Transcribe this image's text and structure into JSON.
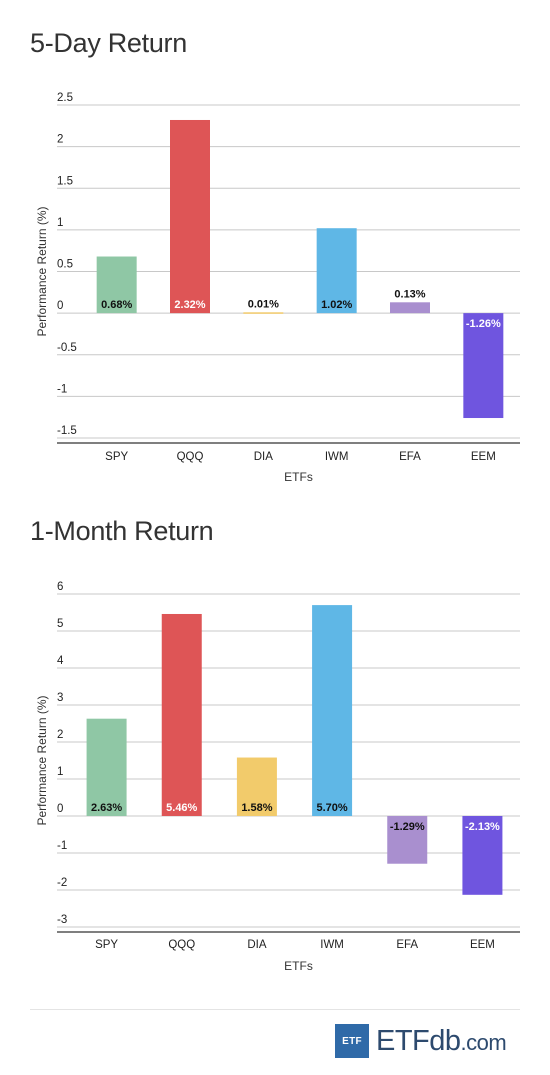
{
  "chart_data": [
    {
      "type": "bar",
      "title": "5-Day Return",
      "xlabel": "ETFs",
      "ylabel": "Performance Return (%)",
      "categories": [
        "SPY",
        "QQQ",
        "DIA",
        "IWM",
        "EFA",
        "EEM"
      ],
      "values": [
        0.68,
        2.32,
        0.01,
        1.02,
        0.13,
        -1.26
      ],
      "labels": [
        "0.68%",
        "2.32%",
        "0.01%",
        "1.02%",
        "0.13%",
        "-1.26%"
      ],
      "colors": [
        "#8fc7a5",
        "#de5556",
        "#f2cb6b",
        "#5fb7e6",
        "#a98fcf",
        "#6f55df"
      ],
      "label_colors": [
        "#111111",
        "#ffffff",
        "#111111",
        "#111111",
        "#111111",
        "#ffffff"
      ],
      "yticks": [
        "2.5",
        "2",
        "1.5",
        "1",
        "0.5",
        "0",
        "-0.5",
        "-1",
        "-1.5"
      ],
      "ylim": [
        -1.5,
        2.5
      ],
      "grid": true
    },
    {
      "type": "bar",
      "title": "1-Month Return",
      "xlabel": "ETFs",
      "ylabel": "Performance Return (%)",
      "categories": [
        "SPY",
        "QQQ",
        "DIA",
        "IWM",
        "EFA",
        "EEM"
      ],
      "values": [
        2.63,
        5.46,
        1.58,
        5.7,
        -1.29,
        -2.13
      ],
      "labels": [
        "2.63%",
        "5.46%",
        "1.58%",
        "5.70%",
        "-1.29%",
        "-2.13%"
      ],
      "colors": [
        "#8fc7a5",
        "#de5556",
        "#f2cb6b",
        "#5fb7e6",
        "#a98fcf",
        "#6f55df"
      ],
      "label_colors": [
        "#111111",
        "#ffffff",
        "#111111",
        "#111111",
        "#111111",
        "#ffffff"
      ],
      "yticks": [
        "6",
        "5",
        "4",
        "3",
        "2",
        "1",
        "0",
        "-1",
        "-2",
        "-3"
      ],
      "ylim": [
        -3,
        6
      ],
      "grid": true
    }
  ],
  "brand": {
    "box_text": "ETF",
    "name": "ETF",
    "db": "db",
    "suffix": ".com"
  }
}
